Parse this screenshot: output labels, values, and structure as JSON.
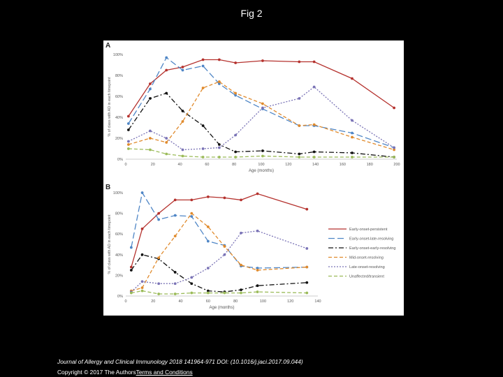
{
  "page": {
    "title": "Fig 2",
    "citation": "Journal of Allergy and Clinical Immunology 2018 141964-971 DOI: (10.1016/j.jaci.2017.09.044)",
    "copyright_prefix": "Copyright © 2017 The Authors",
    "copyright_link": "Terms and Conditions"
  },
  "chart_data": [
    {
      "type": "line",
      "panel_label": "A",
      "xlabel": "Age (months)",
      "ylabel": "% of class with AD in each timepoint",
      "xlim": [
        0,
        200
      ],
      "ylim": [
        0,
        100
      ],
      "x_ticks": [
        0,
        20,
        40,
        60,
        80,
        100,
        120,
        140,
        160,
        180,
        200
      ],
      "y_ticks": [
        0,
        20,
        40,
        60,
        80,
        100
      ],
      "y_tick_labels": [
        "0%",
        "20%",
        "40%",
        "60%",
        "80%",
        "100%"
      ],
      "grid": false,
      "series": [
        {
          "name": "Early-onset-persistent",
          "color": "#b5322e",
          "dash": "",
          "x": [
            2,
            18,
            30,
            42,
            57,
            69,
            81,
            101,
            128,
            139,
            167,
            198
          ],
          "values": [
            41,
            72,
            85,
            88,
            95,
            95,
            92,
            94,
            93,
            93,
            77,
            49
          ]
        },
        {
          "name": "Early-onset-late-resolving",
          "color": "#4f86c6",
          "dash": "9 4",
          "x": [
            2,
            18,
            30,
            42,
            57,
            69,
            81,
            101,
            128,
            139,
            167,
            198
          ],
          "values": [
            34,
            67,
            97,
            85,
            89,
            72,
            61,
            48,
            32,
            32,
            25,
            11
          ]
        },
        {
          "name": "Early-onset-early-resolving",
          "color": "#111111",
          "dash": "7 3 2 3",
          "x": [
            2,
            18,
            30,
            42,
            57,
            69,
            81,
            101,
            128,
            139,
            167,
            198
          ],
          "values": [
            28,
            58,
            63,
            46,
            32,
            14,
            7,
            8,
            5,
            7,
            6,
            2
          ]
        },
        {
          "name": "Mid-onset-resolving",
          "color": "#e08a2c",
          "dash": "5 3",
          "x": [
            2,
            18,
            30,
            42,
            57,
            69,
            81,
            101,
            128,
            139,
            167,
            198
          ],
          "values": [
            14,
            20,
            16,
            36,
            68,
            74,
            63,
            53,
            32,
            33,
            21,
            9
          ]
        },
        {
          "name": "Late-onset-resolving",
          "color": "#7a73b6",
          "dash": "2 2",
          "x": [
            2,
            18,
            30,
            42,
            57,
            69,
            81,
            101,
            128,
            139,
            167,
            198
          ],
          "values": [
            17,
            27,
            20,
            9,
            10,
            11,
            23,
            49,
            58,
            69,
            37,
            11
          ]
        },
        {
          "name": "Unaffected/transient",
          "color": "#9bbb59",
          "dash": "5 3",
          "x": [
            2,
            18,
            30,
            42,
            57,
            69,
            81,
            101,
            128,
            139,
            167,
            198
          ],
          "values": [
            10,
            9,
            5,
            3,
            2,
            2,
            2,
            3,
            2,
            2,
            2,
            2
          ]
        }
      ]
    },
    {
      "type": "line",
      "panel_label": "B",
      "xlabel": "Age (months)",
      "ylabel": "% of class with AD in each timepoint",
      "xlim": [
        0,
        140
      ],
      "ylim": [
        0,
        100
      ],
      "x_ticks": [
        0,
        20,
        40,
        60,
        80,
        100,
        120,
        140
      ],
      "y_ticks": [
        0,
        20,
        40,
        60,
        80,
        100
      ],
      "y_tick_labels": [
        "0%",
        "20%",
        "40%",
        "60%",
        "80%",
        "100%"
      ],
      "legend": "right",
      "grid": false,
      "series": [
        {
          "name": "Early-onset-persistent",
          "color": "#b5322e",
          "dash": "",
          "x": [
            4,
            12,
            24,
            36,
            48,
            60,
            72,
            84,
            96,
            132
          ],
          "values": [
            28,
            65,
            80,
            93,
            93,
            96,
            95,
            93,
            99,
            84
          ]
        },
        {
          "name": "Early-onset-late-resolving",
          "color": "#4f86c6",
          "dash": "9 4",
          "x": [
            4,
            12,
            24,
            36,
            48,
            60,
            72,
            84,
            96,
            132
          ],
          "values": [
            47,
            100,
            74,
            78,
            77,
            53,
            49,
            29,
            27,
            28
          ]
        },
        {
          "name": "Early-onset-early-resolving",
          "color": "#111111",
          "dash": "7 3 2 3",
          "x": [
            4,
            12,
            24,
            36,
            48,
            60,
            72,
            84,
            96,
            132
          ],
          "values": [
            25,
            40,
            36,
            23,
            12,
            5,
            4,
            6,
            10,
            13
          ]
        },
        {
          "name": "Mid-onset-resolving",
          "color": "#e08a2c",
          "dash": "5 3",
          "x": [
            4,
            12,
            24,
            36,
            48,
            60,
            72,
            84,
            96,
            132
          ],
          "values": [
            5,
            8,
            37,
            58,
            80,
            67,
            48,
            30,
            25,
            28
          ]
        },
        {
          "name": "Late-onset-resolving",
          "color": "#7a73b6",
          "dash": "2 2",
          "x": [
            4,
            12,
            24,
            36,
            48,
            60,
            72,
            84,
            96,
            132
          ],
          "values": [
            4,
            14,
            12,
            12,
            18,
            27,
            40,
            61,
            63,
            46
          ]
        },
        {
          "name": "Unaffected/transient",
          "color": "#9bbb59",
          "dash": "5 3",
          "x": [
            4,
            12,
            24,
            36,
            48,
            60,
            72,
            84,
            96,
            132
          ],
          "values": [
            3,
            5,
            2,
            2,
            3,
            3,
            3,
            3,
            4,
            3
          ]
        }
      ]
    }
  ]
}
